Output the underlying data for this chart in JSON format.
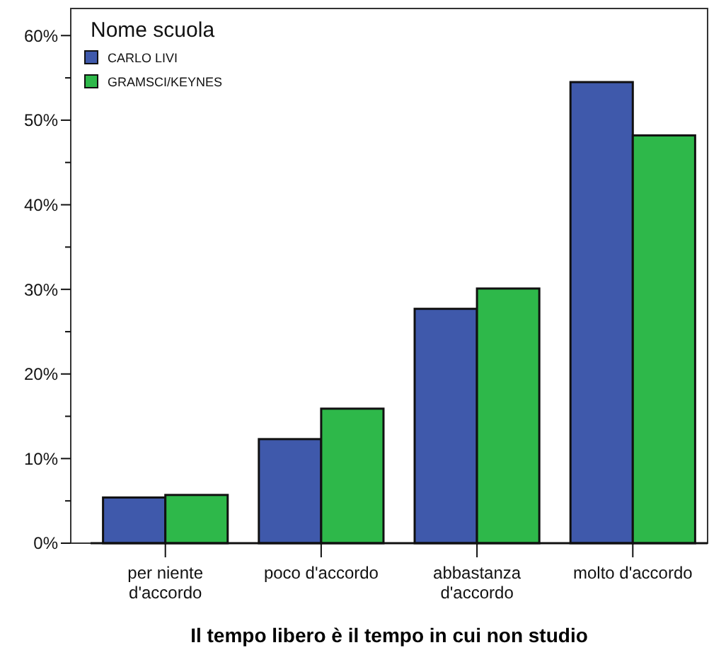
{
  "chart_data": {
    "type": "bar",
    "xlabel": "Il tempo libero è il tempo in cui non studio",
    "legend_title": "Nome scuola",
    "legend": "top left",
    "grid": false,
    "categories": [
      "per niente d'accordo",
      "poco d'accordo",
      "abbastanza d'accordo",
      "molto d'accordo"
    ],
    "series": [
      {
        "name": "CARLO LIVI",
        "color": "#3f59ab",
        "values": [
          5.4,
          12.3,
          27.7,
          54.5
        ]
      },
      {
        "name": "GRAMSCI/KEYNES",
        "color": "#2eb84a",
        "values": [
          5.7,
          15.9,
          30.1,
          48.2
        ]
      }
    ],
    "ylim": [
      0,
      63.2
    ],
    "yticks": [
      {
        "value": 0,
        "label": "0%"
      },
      {
        "value": 5,
        "label": null
      },
      {
        "value": 10,
        "label": "10%"
      },
      {
        "value": 15,
        "label": null
      },
      {
        "value": 20,
        "label": "20%"
      },
      {
        "value": 25,
        "label": null
      },
      {
        "value": 30,
        "label": "30%"
      },
      {
        "value": 35,
        "label": null
      },
      {
        "value": 40,
        "label": "40%"
      },
      {
        "value": 45,
        "label": null
      },
      {
        "value": 50,
        "label": "50%"
      },
      {
        "value": 55,
        "label": null
      },
      {
        "value": 60,
        "label": "60%"
      }
    ]
  }
}
